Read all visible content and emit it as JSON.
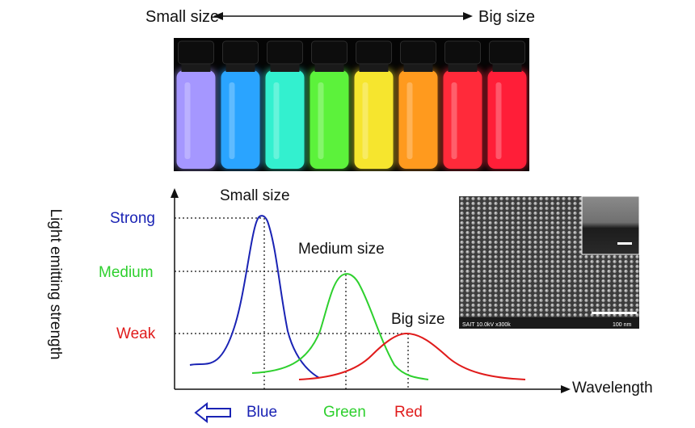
{
  "top_axis": {
    "left_label": "Small size",
    "right_label": "Big size"
  },
  "vials": {
    "count": 8,
    "colors": [
      "#a597ff",
      "#2aa4ff",
      "#33f0cf",
      "#5cf23b",
      "#f6e52e",
      "#ff9a1e",
      "#ff2a3a",
      "#ff1e38"
    ]
  },
  "chart_data": {
    "type": "line",
    "xlabel": "Wavelength",
    "ylabel": "Light emitting strength",
    "y_levels": [
      {
        "label": "Strong",
        "color": "#1a23b4"
      },
      {
        "label": "Medium",
        "color": "#2ed02e"
      },
      {
        "label": "Weak",
        "color": "#e01b1b"
      }
    ],
    "series": [
      {
        "name": "Small size",
        "color": "#1a23b4",
        "relative_peak": 1.0
      },
      {
        "name": "Medium size",
        "color": "#2ed02e",
        "relative_peak": 0.64
      },
      {
        "name": "Big size",
        "color": "#e01b1b",
        "relative_peak": 0.32
      }
    ],
    "x_markers": [
      {
        "label": "Blue",
        "color": "#1a23b4"
      },
      {
        "label": "Green",
        "color": "#2ed02e"
      },
      {
        "label": "Red",
        "color": "#e01b1b"
      }
    ]
  },
  "sem_image": {
    "caption_left": "SAIT 10.0kV x300k",
    "caption_right": "100 nm"
  }
}
